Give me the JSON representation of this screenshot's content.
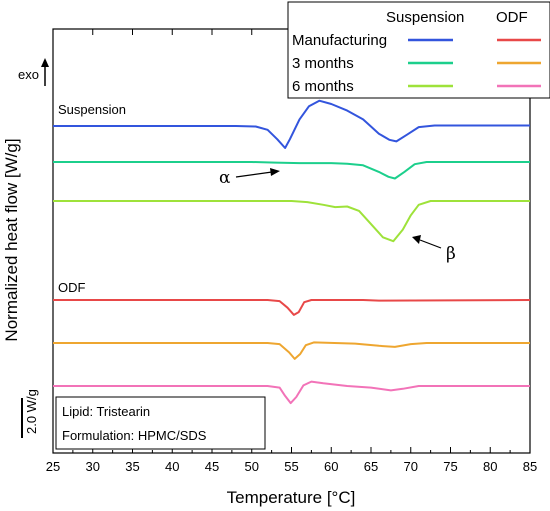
{
  "chart_data": {
    "type": "line",
    "xlabel": "Temperature [°C]",
    "ylabel": "Normalized heat flow [W/g]",
    "xlim": [
      25,
      85
    ],
    "xticks": [
      "25",
      "30",
      "35",
      "40",
      "45",
      "50",
      "55",
      "60",
      "65",
      "70",
      "75",
      "80",
      "85"
    ],
    "exo_label": "exo",
    "scale_bar_label": "2.0 W/g",
    "group_labels": {
      "suspension": "Suspension",
      "odf": "ODF"
    },
    "legend": {
      "header_suspension": "Suspension",
      "header_odf": "ODF",
      "rows": [
        {
          "label": "Manufacturing",
          "suspension_color": "#3355dd",
          "odf_color": "#e84848"
        },
        {
          "label": "3 months",
          "suspension_color": "#1ccf8c",
          "odf_color": "#eea630"
        },
        {
          "label": "6 months",
          "suspension_color": "#9ee23a",
          "odf_color": "#f273b8"
        }
      ]
    },
    "annotations": {
      "alpha": "α",
      "beta": "β",
      "info_lines": [
        "Lipid: Tristearin",
        "Formulation: HPMC/SDS"
      ]
    },
    "series": [
      {
        "group": "Suspension",
        "condition": "Manufacturing",
        "color": "#3355dd",
        "points": [
          [
            25,
            0
          ],
          [
            48,
            0
          ],
          [
            50.5,
            -0.05
          ],
          [
            52,
            -0.35
          ],
          [
            53.2,
            -1.2
          ],
          [
            54.2,
            -2.0
          ],
          [
            54.8,
            -1.2
          ],
          [
            56,
            0.6
          ],
          [
            57.2,
            1.8
          ],
          [
            58.5,
            2.3
          ],
          [
            60,
            2.0
          ],
          [
            62,
            1.4
          ],
          [
            64,
            0.6
          ],
          [
            66,
            -0.7
          ],
          [
            67.3,
            -1.25
          ],
          [
            68.2,
            -1.4
          ],
          [
            69.5,
            -0.8
          ],
          [
            71,
            -0.1
          ],
          [
            73,
            0.05
          ],
          [
            85,
            0.05
          ]
        ]
      },
      {
        "group": "Suspension",
        "condition": "3 months",
        "color": "#1ccf8c",
        "points": [
          [
            25,
            0
          ],
          [
            50,
            0
          ],
          [
            53,
            -0.05
          ],
          [
            56,
            -0.1
          ],
          [
            58,
            -0.1
          ],
          [
            60,
            -0.1
          ],
          [
            62,
            -0.15
          ],
          [
            64,
            -0.3
          ],
          [
            66,
            -0.9
          ],
          [
            67.2,
            -1.35
          ],
          [
            68,
            -1.5
          ],
          [
            69.2,
            -0.9
          ],
          [
            70.5,
            -0.2
          ],
          [
            72,
            0
          ],
          [
            85,
            0
          ]
        ]
      },
      {
        "group": "Suspension",
        "condition": "6 months",
        "color": "#9ee23a",
        "points": [
          [
            25,
            0
          ],
          [
            55,
            0
          ],
          [
            57,
            -0.1
          ],
          [
            59,
            -0.35
          ],
          [
            60.5,
            -0.55
          ],
          [
            62,
            -0.5
          ],
          [
            63.5,
            -0.9
          ],
          [
            65,
            -2.1
          ],
          [
            66.5,
            -3.3
          ],
          [
            67.8,
            -3.65
          ],
          [
            69,
            -2.6
          ],
          [
            70,
            -1.3
          ],
          [
            71,
            -0.35
          ],
          [
            72.5,
            0
          ],
          [
            85,
            0
          ]
        ]
      },
      {
        "group": "ODF",
        "condition": "Manufacturing",
        "color": "#e84848",
        "points": [
          [
            25,
            0
          ],
          [
            52,
            0
          ],
          [
            53.5,
            -0.1
          ],
          [
            54.5,
            -0.7
          ],
          [
            55.3,
            -1.35
          ],
          [
            55.9,
            -1.1
          ],
          [
            56.6,
            -0.2
          ],
          [
            57.5,
            0
          ],
          [
            64,
            0
          ],
          [
            66,
            -0.05
          ],
          [
            85,
            0
          ]
        ]
      },
      {
        "group": "ODF",
        "condition": "3 months",
        "color": "#eea630",
        "points": [
          [
            25,
            0
          ],
          [
            52,
            0
          ],
          [
            53.5,
            -0.1
          ],
          [
            54.7,
            -0.85
          ],
          [
            55.4,
            -1.45
          ],
          [
            56.1,
            -1.0
          ],
          [
            56.8,
            -0.2
          ],
          [
            57.8,
            0.05
          ],
          [
            63,
            -0.05
          ],
          [
            66,
            -0.25
          ],
          [
            68,
            -0.35
          ],
          [
            70,
            -0.1
          ],
          [
            72,
            0
          ],
          [
            85,
            0
          ]
        ]
      },
      {
        "group": "ODF",
        "condition": "6 months",
        "color": "#f273b8",
        "points": [
          [
            25,
            0
          ],
          [
            52,
            0
          ],
          [
            53.5,
            -0.15
          ],
          [
            54.2,
            -0.9
          ],
          [
            54.9,
            -1.55
          ],
          [
            55.6,
            -1.0
          ],
          [
            56.5,
            0.05
          ],
          [
            57.5,
            0.4
          ],
          [
            59,
            0.25
          ],
          [
            62,
            0
          ],
          [
            65,
            -0.15
          ],
          [
            67.5,
            -0.4
          ],
          [
            69,
            -0.25
          ],
          [
            71,
            0
          ],
          [
            85,
            0
          ]
        ]
      }
    ]
  }
}
